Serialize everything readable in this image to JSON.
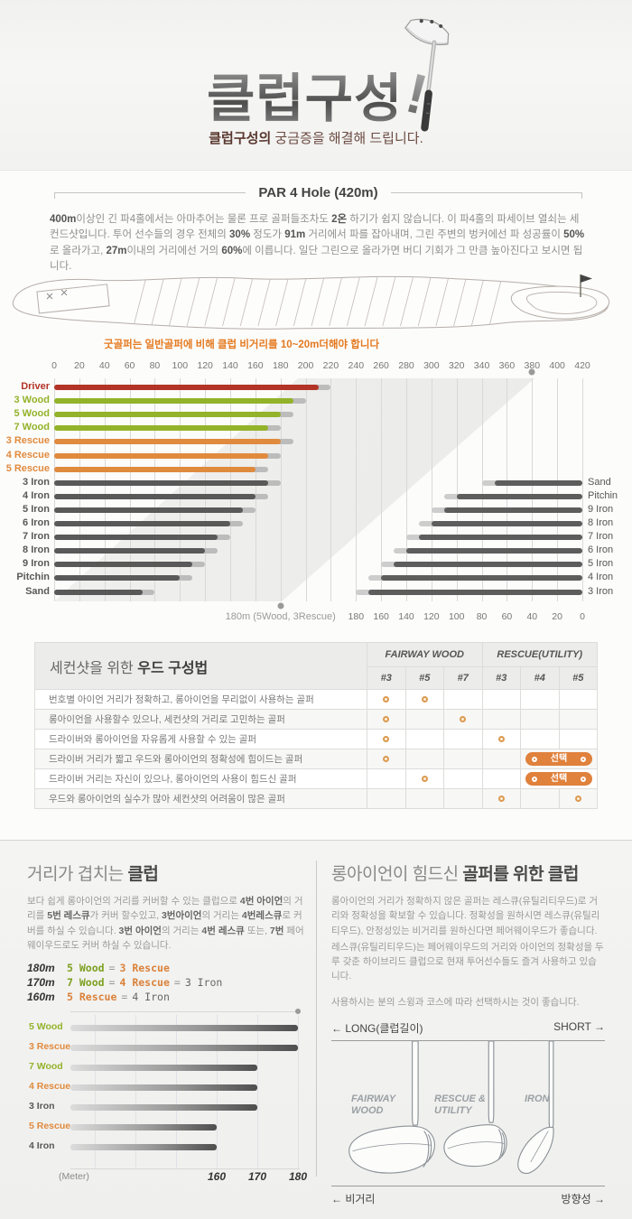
{
  "header": {
    "title": "클럽구성",
    "exclamation": "!",
    "subtitle_bold": "클럽구성의",
    "subtitle_rest": " 궁금증을 해결해 드립니다."
  },
  "colors": {
    "driver": "#b23427",
    "wood": "#93b32a",
    "rescue": "#e08a3e",
    "iron": "#595959",
    "extension": "#bcbcbc",
    "extension_light": "#cdcdcd",
    "right_bar": "#5d5d5d",
    "note": "#e4791f",
    "pill": "#e0813c",
    "ring": "#dc9a50"
  },
  "par_section": {
    "heading": "PAR 4 Hole (420m)",
    "paragraph_segments": [
      {
        "t": "400m",
        "b": true
      },
      {
        "t": "이상인 긴 파4홀에서는 아마추어는 물론 프로 골퍼들조차도 ",
        "b": false
      },
      {
        "t": "2온",
        "b": true
      },
      {
        "t": " 하기가 쉽지 않습니다. 이 파4홀의 파세이브 열쇠는 세컨드샷입니다. 투어 선수들의 경우 전체의 ",
        "b": false
      },
      {
        "t": "30%",
        "b": true
      },
      {
        "t": " 정도가 ",
        "b": false
      },
      {
        "t": "91m",
        "b": true
      },
      {
        "t": " 거리에서 파를 잡아내며, 그린 주변의 벙커에선 파 성공률이 ",
        "b": false
      },
      {
        "t": "50%",
        "b": true
      },
      {
        "t": "로 올라가고, ",
        "b": false
      },
      {
        "t": "27m",
        "b": true
      },
      {
        "t": "이내의 거리에선 거의 ",
        "b": false
      },
      {
        "t": "60%",
        "b": true
      },
      {
        "t": "에 이릅니다. 일단 그린으로 올라가면 버디 기회가 그 만큼 높아진다고 보시면 됩니다.",
        "b": false
      }
    ],
    "note": "굿골퍼는 일반골퍼에 비해 클럽 비거리를 10~20m더해야 합니다"
  },
  "chart_data": [
    {
      "type": "bar",
      "title": "",
      "xlabel": "m",
      "axis": {
        "min": 0,
        "max": 420,
        "step": 20
      },
      "legend_note": "dark bar = regular golfer carry, gray extension = good golfer +10m",
      "series": [
        {
          "name": "Driver",
          "type": "driver",
          "value": 210,
          "good_value": 220
        },
        {
          "name": "3 Wood",
          "type": "wood",
          "value": 190,
          "good_value": 200
        },
        {
          "name": "5 Wood",
          "type": "wood",
          "value": 180,
          "good_value": 190
        },
        {
          "name": "7 Wood",
          "type": "wood",
          "value": 170,
          "good_value": 180
        },
        {
          "name": "3 Rescue",
          "type": "rescue",
          "value": 180,
          "good_value": 190
        },
        {
          "name": "4 Rescue",
          "type": "rescue",
          "value": 170,
          "good_value": 180
        },
        {
          "name": "5 Rescue",
          "type": "rescue",
          "value": 160,
          "good_value": 170
        },
        {
          "name": "3 Iron",
          "type": "iron",
          "value": 170,
          "good_value": 180
        },
        {
          "name": "4 Iron",
          "type": "iron",
          "value": 160,
          "good_value": 170
        },
        {
          "name": "5 Iron",
          "type": "iron",
          "value": 150,
          "good_value": 160
        },
        {
          "name": "6 Iron",
          "type": "iron",
          "value": 140,
          "good_value": 150
        },
        {
          "name": "7 Iron",
          "type": "iron",
          "value": 130,
          "good_value": 140
        },
        {
          "name": "8 Iron",
          "type": "iron",
          "value": 120,
          "good_value": 130
        },
        {
          "name": "9 Iron",
          "type": "iron",
          "value": 110,
          "good_value": 120
        },
        {
          "name": "Pitchin",
          "type": "iron",
          "value": 100,
          "good_value": 110
        },
        {
          "name": "Sand",
          "type": "iron",
          "value": 70,
          "good_value": 80
        }
      ],
      "right_axis": {
        "min": 0,
        "max": 180,
        "step": 20,
        "reversed": true
      },
      "right_series": [
        {
          "name": "Sand",
          "value": 70,
          "good_value": 80
        },
        {
          "name": "Pitchin",
          "value": 100,
          "good_value": 110
        },
        {
          "name": "9 Iron",
          "value": 110,
          "good_value": 120
        },
        {
          "name": "8 Iron",
          "value": 120,
          "good_value": 130
        },
        {
          "name": "7 Iron",
          "value": 130,
          "good_value": 140
        },
        {
          "name": "6 Iron",
          "value": 140,
          "good_value": 150
        },
        {
          "name": "5 Iron",
          "value": 150,
          "good_value": 160
        },
        {
          "name": "4 Iron",
          "value": 160,
          "good_value": 170
        },
        {
          "name": "3 Iron",
          "value": 170,
          "good_value": 180
        }
      ],
      "markers": {
        "top_value": 380,
        "bottom_value": 180,
        "bottom_label": "180m (5Wood, 3Rescue)"
      }
    },
    {
      "type": "bar",
      "title": "",
      "axis_note": "(Meter)",
      "x_ticks": [
        160,
        170,
        180
      ],
      "xlim": [
        120,
        180
      ],
      "series": [
        {
          "name": "5 Wood",
          "type": "wood",
          "value": 180
        },
        {
          "name": "3 Rescue",
          "type": "rescue",
          "value": 180
        },
        {
          "name": "7 Wood",
          "type": "wood",
          "value": 170
        },
        {
          "name": "4 Rescue",
          "type": "rescue",
          "value": 170
        },
        {
          "name": "3 Iron",
          "type": "iron",
          "value": 170
        },
        {
          "name": "5 Rescue",
          "type": "rescue",
          "value": 160
        },
        {
          "name": "4 Iron",
          "type": "iron",
          "value": 160
        }
      ]
    }
  ],
  "table": {
    "title_prefix": "세컨샷을 위한 ",
    "title_bold": "우드 구성법",
    "groups": [
      "FAIRWAY WOOD",
      "RESCUE(UTILITY)"
    ],
    "cols": [
      "#3",
      "#5",
      "#7",
      "#3",
      "#4",
      "#5"
    ],
    "pill_label": "선택",
    "rows": [
      {
        "label": "번호별 아이언 거리가 정확하고, 롱아이언을 무리없이 사용하는 골퍼",
        "marks": [
          "o",
          "o",
          "",
          "",
          "",
          ""
        ]
      },
      {
        "label": "롱아이언을 사용할수 있으나, 세컨샷의 거리로 고민하는 골퍼",
        "marks": [
          "o",
          "",
          "o",
          "",
          "",
          ""
        ]
      },
      {
        "label": "드라이버와 롱아이언을 자유롭게 사용할 수 있는 골퍼",
        "marks": [
          "o",
          "",
          "",
          "o",
          "",
          ""
        ]
      },
      {
        "label": "드라이버 거리가 짧고 우드와 롱아이언의 정확성에 힘이드는 골퍼",
        "marks": [
          "o",
          "",
          "",
          ""
        ],
        "pill": true
      },
      {
        "label": "드라이버 거리는 자신이 있으나, 롱아이언의 사용이 힘드신 골퍼",
        "marks": [
          "",
          "o",
          "",
          ""
        ],
        "pill": true
      },
      {
        "label": "우드와 롱아이언의 실수가 많아 세컨샷의 어려움이 많은 골퍼",
        "marks": [
          "",
          "",
          "",
          "o",
          "",
          "o"
        ]
      }
    ]
  },
  "overlap_section": {
    "title_prefix": "거리가 겹치는 ",
    "title_bold": "클럽",
    "paragraph_segments": [
      {
        "t": "보다 쉽게 롱아이언의 거리를 커버할 수 있는 클럽으로 ",
        "b": false
      },
      {
        "t": "4번 아이언",
        "b": true
      },
      {
        "t": "의 거리를 ",
        "b": false
      },
      {
        "t": "5번 레스큐",
        "b": true
      },
      {
        "t": "가 커버 할수있고, ",
        "b": false
      },
      {
        "t": "3번아이언",
        "b": true
      },
      {
        "t": "의 거리는 ",
        "b": false
      },
      {
        "t": "4번레스큐",
        "b": true
      },
      {
        "t": "로 커버를 하실 수 있습니다. ",
        "b": false
      },
      {
        "t": "3번 아이언",
        "b": true
      },
      {
        "t": "의 거리는 ",
        "b": false
      },
      {
        "t": "4번 레스큐",
        "b": true
      },
      {
        "t": " 또는, ",
        "b": false
      },
      {
        "t": "7번",
        "b": true
      },
      {
        "t": " 페어웨이우드로도 커버 하실 수 있습니다.",
        "b": false
      }
    ],
    "equivalences": [
      {
        "distance": "180m",
        "items": [
          {
            "label": "5 Wood",
            "type": "wood"
          },
          {
            "label": "3 Rescue",
            "type": "rescue"
          }
        ]
      },
      {
        "distance": "170m",
        "items": [
          {
            "label": "7 Wood",
            "type": "wood"
          },
          {
            "label": "4 Rescue",
            "type": "rescue"
          },
          {
            "label": "3 Iron",
            "type": "iron"
          }
        ]
      },
      {
        "distance": "160m",
        "items": [
          {
            "label": "5 Rescue",
            "type": "rescue"
          },
          {
            "label": "4 Iron",
            "type": "iron"
          }
        ]
      }
    ]
  },
  "rescue_section": {
    "title_prefix": "롱아이언이 힘드신 ",
    "title_bold": "골퍼를 위한 클럽",
    "p1": "롱아이언의 거리가 정확하지 않은 골퍼는 레스큐(유틸리티우드)로 거리와 정확성을 확보할 수 있습니다. 정확성을 원하시면 레스큐(유틸리티우드), 안정성있는 비거리를 원하신다면 페어웨이우드가 좋습니다.",
    "p2": "레스큐(유틸리티우드)는 페어웨이우드의 거리와 아이언의 정확성을 두루 갖춘 하이브리드 클럽으로 현재 투어선수들도 즐겨 사용하고 있습니다.",
    "p3": "사용하시는 분의 스윙과 코스에 따라 선택하시는 것이 좋습니다.",
    "diagram": {
      "top_left": "← LONG(클럽길이)",
      "top_right": "SHORT →",
      "club_labels": [
        "FAIRWAY WOOD",
        "RESCUE & UTILITY",
        "IRON"
      ],
      "bottom_left": "← 비거리",
      "bottom_right": "방향성 →"
    }
  }
}
